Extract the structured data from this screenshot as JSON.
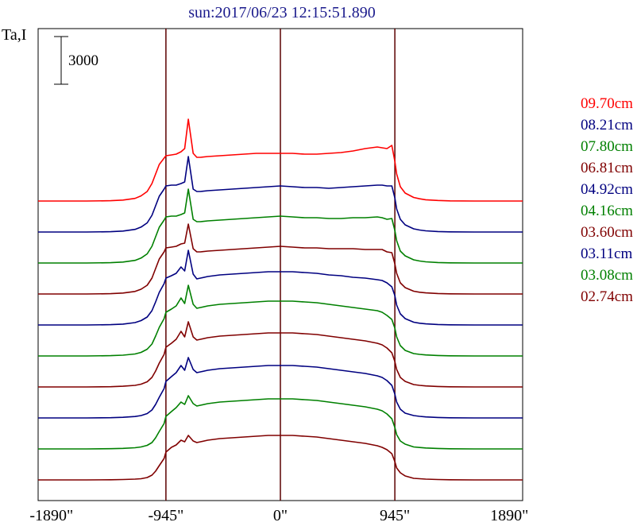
{
  "chart_data": {
    "type": "line",
    "title": "sun:2017/06/23 12:15:51.890",
    "ylabel": "Ta,I",
    "xlabel": "",
    "scale_bar_label": "3000",
    "scale_bar_value": 3000,
    "xlim": [
      -2000,
      2000
    ],
    "x_ticks": [
      {
        "value": -1890,
        "label": "-1890\""
      },
      {
        "value": -945,
        "label": "-945\""
      },
      {
        "value": 0,
        "label": "0\""
      },
      {
        "value": 945,
        "label": "945\""
      },
      {
        "value": 1890,
        "label": "1890\""
      }
    ],
    "vertical_reference_lines": [
      -945,
      0,
      945
    ],
    "grid": false,
    "legend_position": "right",
    "offset_step": 3900,
    "x": [
      -2000,
      -1800,
      -1600,
      -1400,
      -1300,
      -1200,
      -1150,
      -1100,
      -1060,
      -1030,
      -1000,
      -960,
      -945,
      -900,
      -860,
      -820,
      -790,
      -760,
      -720,
      -690,
      -660,
      -600,
      -500,
      -400,
      -300,
      -200,
      -100,
      0,
      100,
      200,
      300,
      400,
      500,
      600,
      700,
      800,
      840,
      880,
      920,
      945,
      960,
      990,
      1030,
      1100,
      1150,
      1200,
      1300,
      1400,
      1600,
      1800,
      2000
    ],
    "series": [
      {
        "name": "02.74cm",
        "color": "#800000",
        "values": [
          0,
          0,
          0,
          20,
          50,
          100,
          150,
          300,
          600,
          1100,
          1800,
          2700,
          3500,
          4100,
          4400,
          5000,
          4800,
          5600,
          4900,
          4700,
          4800,
          5000,
          5200,
          5300,
          5400,
          5500,
          5600,
          5600,
          5600,
          5500,
          5400,
          5200,
          5000,
          4800,
          4600,
          4300,
          4100,
          3800,
          3300,
          2300,
          1500,
          900,
          500,
          200,
          150,
          100,
          50,
          20,
          0,
          0,
          0
        ]
      },
      {
        "name": "03.08cm",
        "color": "#008000",
        "values": [
          0,
          0,
          0,
          30,
          70,
          150,
          250,
          450,
          800,
          1400,
          2200,
          3200,
          4100,
          4700,
          5200,
          5900,
          5600,
          6700,
          5700,
          5400,
          5500,
          5700,
          5900,
          6000,
          6100,
          6200,
          6300,
          6300,
          6300,
          6200,
          6100,
          5900,
          5700,
          5500,
          5300,
          5000,
          4800,
          4400,
          3800,
          2700,
          1800,
          1000,
          600,
          250,
          180,
          120,
          60,
          20,
          0,
          0,
          0
        ]
      },
      {
        "name": "03.11cm",
        "color": "#000080",
        "values": [
          0,
          0,
          0,
          30,
          80,
          180,
          300,
          550,
          1000,
          1700,
          2600,
          3700,
          4600,
          5200,
          5700,
          6600,
          6000,
          7600,
          6100,
          5700,
          5800,
          6000,
          6200,
          6300,
          6400,
          6500,
          6600,
          6600,
          6600,
          6500,
          6400,
          6200,
          6000,
          5800,
          5600,
          5300,
          5100,
          4700,
          4100,
          3000,
          2000,
          1100,
          600,
          300,
          200,
          130,
          60,
          20,
          0,
          0,
          0
        ]
      },
      {
        "name": "03.60cm",
        "color": "#800000",
        "values": [
          0,
          0,
          0,
          30,
          90,
          200,
          350,
          650,
          1200,
          2000,
          3000,
          4100,
          5000,
          5500,
          6000,
          7000,
          6300,
          8200,
          6300,
          5900,
          6000,
          6200,
          6400,
          6500,
          6600,
          6700,
          6800,
          6800,
          6800,
          6700,
          6600,
          6400,
          6200,
          6000,
          5800,
          5500,
          5300,
          4900,
          4300,
          3200,
          2200,
          1200,
          700,
          300,
          200,
          130,
          60,
          20,
          0,
          0,
          0
        ]
      },
      {
        "name": "04.16cm",
        "color": "#008000",
        "values": [
          0,
          0,
          0,
          40,
          100,
          250,
          450,
          850,
          1500,
          2500,
          3600,
          4700,
          5500,
          5900,
          6300,
          7300,
          6600,
          8900,
          6500,
          6000,
          6100,
          6300,
          6500,
          6600,
          6700,
          6800,
          6900,
          6900,
          6900,
          6800,
          6700,
          6500,
          6300,
          6100,
          5900,
          5700,
          5500,
          5100,
          4600,
          3500,
          2400,
          1300,
          700,
          300,
          200,
          130,
          60,
          20,
          0,
          0,
          0
        ]
      },
      {
        "name": "04.92cm",
        "color": "#000080",
        "values": [
          0,
          0,
          0,
          40,
          110,
          300,
          550,
          1000,
          1800,
          2900,
          4100,
          5200,
          5900,
          6200,
          6500,
          7300,
          6800,
          9400,
          6400,
          5800,
          5900,
          6100,
          6300,
          6400,
          6500,
          6600,
          6700,
          6700,
          6700,
          6600,
          6500,
          6300,
          6200,
          6000,
          5900,
          5700,
          5600,
          5300,
          4800,
          3700,
          2500,
          1400,
          800,
          350,
          220,
          140,
          60,
          20,
          0,
          0,
          0
        ]
      },
      {
        "name": "06.81cm",
        "color": "#800000",
        "values": [
          0,
          0,
          0,
          40,
          120,
          320,
          600,
          1100,
          2000,
          3200,
          4400,
          5300,
          5800,
          5900,
          6000,
          6300,
          6400,
          8800,
          5700,
          5300,
          5300,
          5400,
          5500,
          5600,
          5700,
          5800,
          5900,
          6000,
          5900,
          5800,
          5800,
          5700,
          5700,
          5700,
          5600,
          5600,
          5600,
          5300,
          5200,
          3800,
          2600,
          1400,
          800,
          350,
          220,
          140,
          60,
          20,
          0,
          0,
          0
        ]
      },
      {
        "name": "07.80cm",
        "color": "#008000",
        "values": [
          0,
          0,
          0,
          40,
          120,
          330,
          620,
          1150,
          2100,
          3300,
          4500,
          5400,
          5800,
          5900,
          5900,
          6100,
          6300,
          9300,
          5500,
          5200,
          5200,
          5300,
          5400,
          5500,
          5600,
          5700,
          5800,
          5900,
          5800,
          5700,
          5700,
          5600,
          5600,
          5700,
          5700,
          5800,
          5700,
          5500,
          5600,
          4100,
          2800,
          1500,
          900,
          400,
          250,
          150,
          60,
          20,
          0,
          0,
          0
        ]
      },
      {
        "name": "08.21cm",
        "color": "#000080",
        "values": [
          0,
          0,
          0,
          40,
          120,
          330,
          620,
          1150,
          2100,
          3300,
          4500,
          5400,
          5800,
          5900,
          5900,
          6100,
          6300,
          9500,
          5400,
          5100,
          5100,
          5200,
          5300,
          5400,
          5500,
          5600,
          5700,
          5800,
          5700,
          5600,
          5600,
          5500,
          5600,
          5700,
          5800,
          5900,
          5900,
          5800,
          5800,
          4300,
          2900,
          1600,
          900,
          400,
          250,
          150,
          60,
          20,
          0,
          0,
          0
        ]
      },
      {
        "name": "09.70cm",
        "color": "#ff0000",
        "values": [
          0,
          0,
          0,
          40,
          120,
          330,
          650,
          1200,
          2200,
          3400,
          4600,
          5400,
          5700,
          5800,
          5900,
          6200,
          6600,
          10300,
          6000,
          5500,
          5500,
          5600,
          5700,
          5800,
          5900,
          6000,
          6000,
          6000,
          6000,
          5900,
          5900,
          6000,
          6100,
          6300,
          6600,
          6800,
          6700,
          6600,
          7000,
          5000,
          3400,
          1800,
          1000,
          450,
          280,
          160,
          70,
          20,
          0,
          0,
          0
        ]
      }
    ]
  }
}
